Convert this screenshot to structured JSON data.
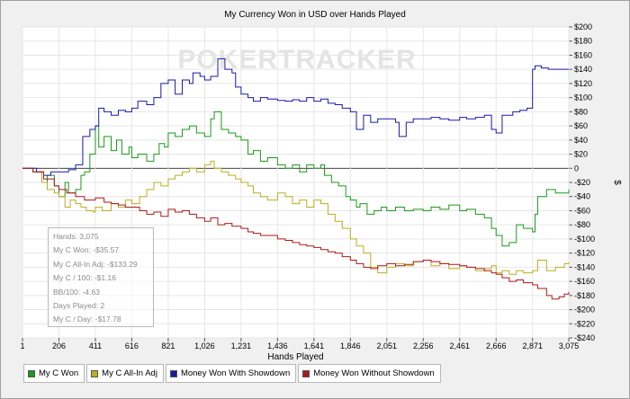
{
  "chart_data": {
    "type": "line",
    "title": "My Currency Won in USD over Hands Played",
    "xlabel": "Hands Played",
    "ylabel": "$",
    "xlim": [
      1,
      3075
    ],
    "ylim": [
      -240,
      200
    ],
    "x_ticks": [
      1,
      206,
      411,
      616,
      821,
      1026,
      1231,
      1436,
      1641,
      1846,
      2051,
      2256,
      2461,
      2666,
      2871,
      3075
    ],
    "x_tick_labels": [
      "1",
      "206",
      "411",
      "616",
      "821",
      "1,026",
      "1,231",
      "1,436",
      "1,641",
      "1,846",
      "2,051",
      "2,256",
      "2,461",
      "2,666",
      "2,871",
      "3,075"
    ],
    "y_ticks": [
      200,
      180,
      160,
      140,
      120,
      100,
      80,
      60,
      40,
      20,
      0,
      -20,
      -40,
      -60,
      -80,
      -100,
      -120,
      -140,
      -160,
      -180,
      -200,
      -220,
      -240
    ],
    "y_tick_labels": [
      "$200",
      "$180",
      "$160",
      "$140",
      "$120",
      "$100",
      "$80",
      "$60",
      "$40",
      "$20",
      "0",
      "-$20",
      "-$40",
      "-$60",
      "-$80",
      "-$100",
      "-$120",
      "-$140",
      "-$160",
      "-$180",
      "-$200",
      "-$220",
      "-$240"
    ],
    "grid": true,
    "legend_position": "bottom",
    "watermark": "POKERTRACKER",
    "series": [
      {
        "name": "My C Won",
        "color": "#1a9a1a",
        "x": [
          1,
          60,
          110,
          140,
          180,
          206,
          240,
          260,
          300,
          330,
          350,
          380,
          411,
          430,
          460,
          500,
          530,
          560,
          600,
          616,
          650,
          700,
          740,
          770,
          800,
          821,
          860,
          900,
          940,
          980,
          1026,
          1060,
          1080,
          1120,
          1160,
          1200,
          1231,
          1270,
          1300,
          1340,
          1380,
          1436,
          1480,
          1520,
          1560,
          1600,
          1641,
          1680,
          1700,
          1740,
          1780,
          1820,
          1846,
          1880,
          1900,
          1940,
          1980,
          2020,
          2051,
          2100,
          2150,
          2200,
          2256,
          2300,
          2350,
          2400,
          2461,
          2500,
          2550,
          2600,
          2640,
          2666,
          2700,
          2740,
          2780,
          2820,
          2871,
          2885,
          2900,
          2950,
          3000,
          3050,
          3075
        ],
        "values": [
          0,
          -5,
          -20,
          -10,
          -25,
          -40,
          -20,
          -35,
          -30,
          -10,
          -5,
          20,
          60,
          30,
          45,
          25,
          40,
          20,
          30,
          15,
          20,
          10,
          20,
          35,
          30,
          50,
          45,
          55,
          60,
          50,
          45,
          70,
          80,
          55,
          50,
          45,
          40,
          20,
          25,
          10,
          15,
          5,
          0,
          5,
          -5,
          5,
          0,
          5,
          -10,
          -20,
          -25,
          -40,
          -45,
          -55,
          -50,
          -65,
          -60,
          -55,
          -60,
          -55,
          -60,
          -58,
          -60,
          -55,
          -58,
          -52,
          -60,
          -58,
          -65,
          -70,
          -85,
          -95,
          -110,
          -105,
          -80,
          -85,
          -90,
          -65,
          -40,
          -30,
          -35,
          -35,
          -30
        ]
      },
      {
        "name": "My C All-In Adj",
        "color": "#b8b020",
        "x": [
          1,
          60,
          110,
          140,
          180,
          206,
          240,
          270,
          300,
          330,
          360,
          400,
          411,
          450,
          500,
          540,
          580,
          616,
          660,
          700,
          740,
          780,
          821,
          860,
          900,
          940,
          980,
          1026,
          1060,
          1080,
          1120,
          1160,
          1200,
          1231,
          1270,
          1300,
          1340,
          1380,
          1436,
          1480,
          1520,
          1560,
          1600,
          1641,
          1680,
          1720,
          1760,
          1800,
          1846,
          1880,
          1920,
          1960,
          2000,
          2051,
          2100,
          2150,
          2200,
          2256,
          2300,
          2350,
          2400,
          2461,
          2500,
          2550,
          2600,
          2640,
          2666,
          2700,
          2740,
          2780,
          2820,
          2871,
          2900,
          2950,
          3000,
          3050,
          3075
        ],
        "values": [
          0,
          -5,
          -20,
          -30,
          -35,
          -40,
          -55,
          -45,
          -50,
          -55,
          -60,
          -62,
          -55,
          -60,
          -50,
          -55,
          -45,
          -50,
          -40,
          -30,
          -20,
          -25,
          -15,
          -10,
          -5,
          0,
          -5,
          5,
          10,
          0,
          -5,
          -10,
          -15,
          -20,
          -25,
          -35,
          -40,
          -45,
          -35,
          -40,
          -50,
          -45,
          -55,
          -45,
          -50,
          -65,
          -75,
          -85,
          -100,
          -110,
          -120,
          -140,
          -148,
          -140,
          -135,
          -138,
          -132,
          -130,
          -138,
          -135,
          -142,
          -138,
          -140,
          -145,
          -142,
          -138,
          -148,
          -145,
          -150,
          -145,
          -148,
          -145,
          -130,
          -145,
          -140,
          -135,
          -133
        ]
      },
      {
        "name": "Money Won With Showdown",
        "color": "#1a1aaa",
        "x": [
          1,
          80,
          120,
          160,
          206,
          260,
          300,
          340,
          380,
          411,
          430,
          460,
          500,
          540,
          580,
          616,
          650,
          700,
          740,
          780,
          821,
          860,
          900,
          940,
          960,
          1000,
          1026,
          1060,
          1100,
          1140,
          1180,
          1200,
          1231,
          1270,
          1300,
          1340,
          1380,
          1436,
          1480,
          1520,
          1560,
          1600,
          1641,
          1680,
          1720,
          1760,
          1800,
          1846,
          1880,
          1920,
          1960,
          2000,
          2051,
          2100,
          2120,
          2160,
          2200,
          2256,
          2300,
          2350,
          2400,
          2461,
          2500,
          2550,
          2600,
          2640,
          2666,
          2700,
          2760,
          2800,
          2840,
          2871,
          2885,
          2920,
          2960,
          3000,
          3075
        ],
        "values": [
          0,
          -5,
          -10,
          -5,
          -5,
          -2,
          5,
          45,
          55,
          60,
          85,
          80,
          75,
          82,
          80,
          85,
          95,
          90,
          100,
          120,
          125,
          105,
          125,
          120,
          135,
          130,
          125,
          130,
          155,
          140,
          135,
          115,
          105,
          100,
          95,
          100,
          98,
          96,
          95,
          97,
          95,
          100,
          95,
          98,
          92,
          90,
          85,
          80,
          55,
          75,
          65,
          70,
          70,
          65,
          45,
          65,
          70,
          70,
          72,
          70,
          68,
          72,
          70,
          72,
          75,
          55,
          50,
          75,
          80,
          82,
          85,
          140,
          145,
          142,
          140,
          140,
          140
        ]
      },
      {
        "name": "Money Won Without Showdown",
        "color": "#aa1a1a",
        "x": [
          1,
          60,
          120,
          180,
          206,
          250,
          300,
          350,
          411,
          460,
          500,
          540,
          580,
          616,
          660,
          700,
          740,
          780,
          821,
          860,
          900,
          940,
          980,
          1026,
          1060,
          1100,
          1140,
          1180,
          1231,
          1270,
          1300,
          1340,
          1380,
          1436,
          1480,
          1520,
          1560,
          1600,
          1641,
          1680,
          1720,
          1760,
          1800,
          1846,
          1880,
          1920,
          1960,
          2000,
          2051,
          2100,
          2150,
          2200,
          2256,
          2300,
          2350,
          2400,
          2461,
          2500,
          2550,
          2600,
          2640,
          2666,
          2700,
          2740,
          2780,
          2820,
          2871,
          2900,
          2950,
          2980,
          3020,
          3050,
          3075
        ],
        "values": [
          0,
          -5,
          -15,
          -25,
          -30,
          -35,
          -40,
          -45,
          -42,
          -48,
          -50,
          -52,
          -55,
          -55,
          -60,
          -65,
          -62,
          -68,
          -58,
          -62,
          -60,
          -65,
          -70,
          -75,
          -70,
          -80,
          -78,
          -82,
          -85,
          -90,
          -92,
          -95,
          -95,
          -100,
          -102,
          -105,
          -108,
          -110,
          -112,
          -115,
          -118,
          -120,
          -125,
          -130,
          -135,
          -140,
          -142,
          -138,
          -135,
          -138,
          -136,
          -132,
          -130,
          -132,
          -135,
          -136,
          -138,
          -140,
          -142,
          -145,
          -148,
          -150,
          -155,
          -160,
          -158,
          -162,
          -165,
          -170,
          -180,
          -185,
          -182,
          -178,
          -175
        ]
      }
    ]
  },
  "stats": {
    "hands": "Hands: 3,075",
    "won": "My C Won: -$35.57",
    "allin": "My C All-In Adj: -$133.29",
    "per100": "My C / 100: -$1.16",
    "bb100": "BB/100: -4.63",
    "days": "Days Played: 2",
    "perday": "My C / Day: -$17.78"
  }
}
